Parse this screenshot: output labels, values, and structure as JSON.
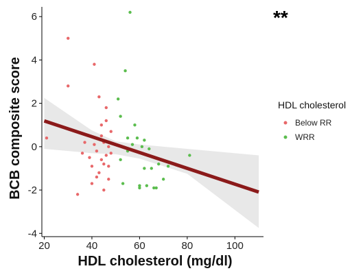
{
  "chart_data": {
    "type": "scatter",
    "xlabel": "HDL cholesterol (mg/dl)",
    "ylabel": "BCB composite score",
    "annotation": "**",
    "xlim": [
      19,
      112
    ],
    "ylim": [
      -4.15,
      6.45
    ],
    "xticks": [
      20,
      40,
      60,
      80,
      100
    ],
    "yticks": [
      -4,
      -2,
      0,
      2,
      4,
      6
    ],
    "grid": false,
    "legend": {
      "title": "HDL cholesterol",
      "position": "right",
      "entries": [
        {
          "label": "Below RR",
          "color": "#e8686a"
        },
        {
          "label": "WRR",
          "color": "#5bbd4e"
        }
      ]
    },
    "series": [
      {
        "name": "Below RR",
        "color": "#e8686a",
        "points": [
          [
            21,
            0.4
          ],
          [
            30,
            5.0
          ],
          [
            30,
            2.8
          ],
          [
            34,
            -2.2
          ],
          [
            36,
            -0.3
          ],
          [
            37,
            0.2
          ],
          [
            39,
            -0.5
          ],
          [
            40,
            -1.7
          ],
          [
            40,
            -0.9
          ],
          [
            41,
            3.8
          ],
          [
            41,
            0.1
          ],
          [
            42,
            -1.4
          ],
          [
            42,
            -0.2
          ],
          [
            43,
            2.3
          ],
          [
            43,
            -1.2
          ],
          [
            44,
            -0.6
          ],
          [
            44,
            0.5
          ],
          [
            44,
            1.0
          ],
          [
            45,
            -0.8
          ],
          [
            45,
            -2.0
          ],
          [
            45,
            0.2
          ],
          [
            46,
            1.8
          ],
          [
            46,
            1.2
          ],
          [
            46,
            -0.4
          ],
          [
            47,
            -0.9
          ],
          [
            47,
            -1.5
          ],
          [
            47,
            0.0
          ],
          [
            48,
            -0.3
          ],
          [
            48,
            0.7
          ]
        ]
      },
      {
        "name": "WRR",
        "color": "#5bbd4e",
        "points": [
          [
            51,
            2.2
          ],
          [
            52,
            -0.6
          ],
          [
            52,
            1.4
          ],
          [
            53,
            -1.7
          ],
          [
            54,
            3.5
          ],
          [
            55,
            -0.2
          ],
          [
            55,
            0.4
          ],
          [
            56,
            6.2
          ],
          [
            57,
            0.1
          ],
          [
            58,
            1.0
          ],
          [
            59,
            0.4
          ],
          [
            60,
            -1.8
          ],
          [
            60,
            -1.9
          ],
          [
            61,
            0.0
          ],
          [
            62,
            0.3
          ],
          [
            62,
            -1.0
          ],
          [
            63,
            -1.8
          ],
          [
            64,
            -0.1
          ],
          [
            65,
            -1.0
          ],
          [
            66,
            -1.9
          ],
          [
            67,
            -1.9
          ],
          [
            68,
            -0.8
          ],
          [
            70,
            -1.5
          ],
          [
            72,
            -0.9
          ],
          [
            81,
            -0.4
          ]
        ]
      }
    ],
    "fit": {
      "type": "linear",
      "color": "#8b1a1a",
      "ci_color": "#e8e8e8",
      "x_range": [
        20,
        110
      ],
      "intercept": 1.92,
      "slope": -0.0365,
      "ci_upper": [
        [
          20,
          2.25
        ],
        [
          40,
          0.75
        ],
        [
          50,
          0.25
        ],
        [
          60,
          0.1
        ],
        [
          80,
          -0.1
        ],
        [
          110,
          -0.4
        ]
      ],
      "ci_lower": [
        [
          20,
          -0.1
        ],
        [
          40,
          -0.3
        ],
        [
          50,
          -0.35
        ],
        [
          60,
          -0.55
        ],
        [
          80,
          -1.25
        ],
        [
          110,
          -3.75
        ]
      ]
    }
  }
}
